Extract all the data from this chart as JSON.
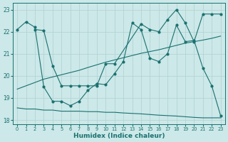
{
  "xlabel": "Humidex (Indice chaleur)",
  "background_color": "#cce8e8",
  "line_color": "#1a7070",
  "grid_color": "#b0d0d0",
  "xlim": [
    -0.5,
    23.5
  ],
  "ylim": [
    17.8,
    23.3
  ],
  "yticks": [
    18,
    19,
    20,
    21,
    22,
    23
  ],
  "xticks": [
    0,
    1,
    2,
    3,
    4,
    5,
    6,
    7,
    8,
    9,
    10,
    11,
    12,
    13,
    14,
    15,
    16,
    17,
    18,
    19,
    20,
    21,
    22,
    23
  ],
  "series_smooth_decline_x": [
    0,
    1,
    2,
    3,
    4,
    5,
    6,
    7,
    8,
    9,
    10,
    11,
    12,
    13,
    14,
    15,
    16,
    17,
    18,
    19,
    20,
    21,
    22,
    23
  ],
  "series_smooth_decline_y": [
    18.55,
    18.5,
    18.5,
    18.45,
    18.45,
    18.4,
    18.4,
    18.4,
    18.38,
    18.38,
    18.35,
    18.35,
    18.32,
    18.3,
    18.28,
    18.25,
    18.22,
    18.2,
    18.18,
    18.15,
    18.12,
    18.1,
    18.1,
    18.1
  ],
  "series_smooth_rise_x": [
    0,
    1,
    2,
    3,
    4,
    5,
    6,
    7,
    8,
    9,
    10,
    11,
    12,
    13,
    14,
    15,
    16,
    17,
    18,
    19,
    20,
    21,
    22,
    23
  ],
  "series_smooth_rise_y": [
    19.4,
    19.55,
    19.7,
    19.85,
    19.95,
    20.05,
    20.15,
    20.25,
    20.38,
    20.5,
    20.62,
    20.72,
    20.82,
    20.92,
    21.02,
    21.1,
    21.18,
    21.28,
    21.38,
    21.48,
    21.55,
    21.62,
    21.7,
    21.8
  ],
  "series_zigzag1_x": [
    0,
    1,
    2,
    3,
    4,
    5,
    6,
    7,
    8,
    9,
    10,
    11,
    12,
    13,
    14,
    15,
    16,
    17,
    18,
    19,
    20,
    21,
    22,
    23
  ],
  "series_zigzag1_y": [
    22.1,
    22.45,
    22.2,
    19.5,
    18.85,
    18.85,
    18.65,
    18.85,
    19.35,
    19.65,
    19.6,
    20.1,
    20.65,
    22.4,
    22.1,
    20.8,
    20.65,
    21.0,
    22.3,
    21.55,
    21.6,
    20.35,
    19.55,
    18.2
  ],
  "series_zigzag2_x": [
    2,
    3,
    4,
    5,
    6,
    7,
    8,
    9,
    10,
    11,
    14,
    15,
    16,
    17,
    18,
    19,
    20,
    21,
    22,
    23
  ],
  "series_zigzag2_y": [
    22.1,
    22.05,
    20.45,
    19.55,
    19.55,
    19.55,
    19.55,
    19.55,
    20.55,
    20.55,
    22.35,
    22.1,
    22.0,
    22.55,
    23.0,
    22.4,
    21.55,
    22.8,
    22.8,
    22.8
  ]
}
